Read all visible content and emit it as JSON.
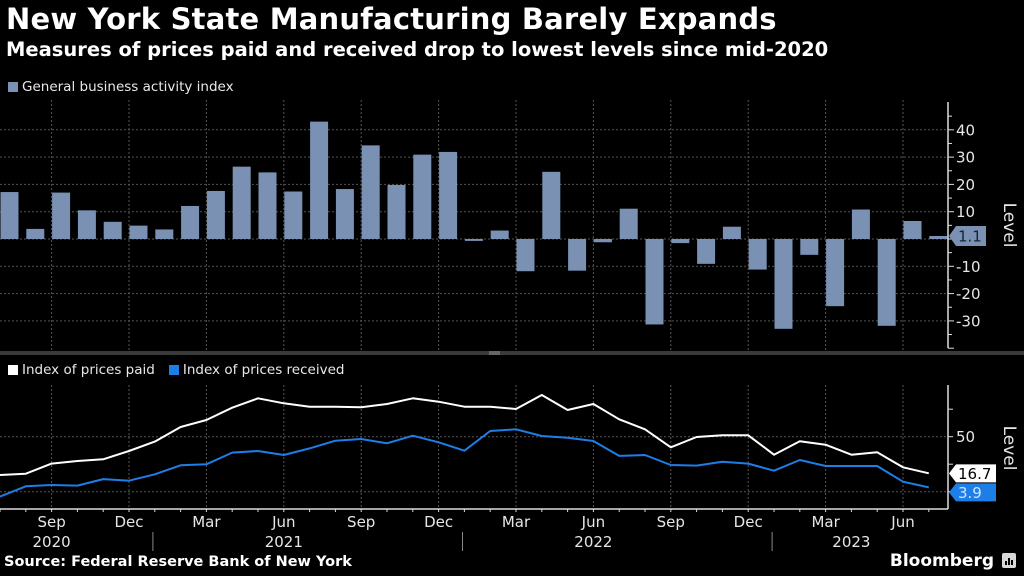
{
  "header": {
    "title": "New York State Manufacturing Barely Expands",
    "subtitle": "Measures of prices paid and received drop to lowest levels since mid-2020"
  },
  "footer": {
    "source": "Source: Federal Reserve Bank of New York",
    "brand": "Bloomberg"
  },
  "chart_data": [
    {
      "type": "bar",
      "title": "General business activity index",
      "legend": [
        {
          "name": "General business activity index",
          "color": "#7a91b3"
        }
      ],
      "legend_position": "top-left",
      "ylabel": "Level",
      "ylim": [
        -40,
        50
      ],
      "yticks": [
        40,
        30,
        20,
        10,
        -10,
        -20,
        -30
      ],
      "grid": true,
      "last_value_label": "1.1",
      "x": [
        "Jul 2020",
        "Aug 2020",
        "Sep 2020",
        "Oct 2020",
        "Nov 2020",
        "Dec 2020",
        "Jan 2021",
        "Feb 2021",
        "Mar 2021",
        "Apr 2021",
        "May 2021",
        "Jun 2021",
        "Jul 2021",
        "Aug 2021",
        "Sep 2021",
        "Oct 2021",
        "Nov 2021",
        "Dec 2021",
        "Jan 2022",
        "Feb 2022",
        "Mar 2022",
        "Apr 2022",
        "May 2022",
        "Jun 2022",
        "Jul 2022",
        "Aug 2022",
        "Sep 2022",
        "Oct 2022",
        "Nov 2022",
        "Dec 2022",
        "Jan 2023",
        "Feb 2023",
        "Mar 2023",
        "Apr 2023",
        "May 2023",
        "Jun 2023",
        "Jul 2023"
      ],
      "values": [
        17.2,
        3.7,
        17.0,
        10.5,
        6.3,
        4.9,
        3.5,
        12.1,
        17.6,
        26.5,
        24.4,
        17.4,
        43.0,
        18.3,
        34.3,
        19.8,
        30.9,
        31.9,
        -0.7,
        3.1,
        -11.8,
        24.6,
        -11.6,
        -1.2,
        11.1,
        -31.3,
        -1.5,
        -9.1,
        4.5,
        -11.2,
        -32.9,
        -5.8,
        -24.6,
        10.8,
        -31.8,
        6.6,
        1.1
      ],
      "color": "#7a91b3"
    },
    {
      "type": "line",
      "legend_position": "top-left",
      "ylabel": "Level",
      "ylim": [
        -8,
        100
      ],
      "yticks": [
        50
      ],
      "grid": true,
      "series": [
        {
          "name": "Index of prices paid",
          "color": "#ffffff",
          "last_value_label": "16.7",
          "values": [
            15.2,
            16.4,
            25.5,
            27.9,
            29.5,
            37.0,
            45.5,
            58.8,
            65.2,
            76.4,
            84.9,
            80.4,
            77.3,
            77.3,
            76.7,
            79.7,
            84.9,
            81.8,
            77.3,
            77.3,
            75.2,
            87.9,
            74.3,
            79.7,
            65.8,
            56.7,
            40.4,
            49.7,
            51.3,
            51.3,
            33.6,
            45.8,
            42.7,
            33.6,
            35.8,
            22.2,
            16.7
          ]
        },
        {
          "name": "Index of prices received",
          "color": "#1e7ee8",
          "last_value_label": "3.9",
          "values": [
            -4.5,
            4.9,
            6.1,
            5.5,
            11.5,
            10.0,
            15.8,
            24.0,
            24.9,
            35.5,
            37.0,
            33.4,
            39.4,
            46.4,
            47.9,
            44.0,
            50.9,
            44.9,
            37.3,
            55.2,
            56.7,
            50.6,
            49.1,
            46.1,
            32.5,
            33.4,
            24.3,
            23.7,
            27.3,
            25.5,
            19.1,
            28.8,
            23.4,
            23.4,
            23.4,
            9.1,
            3.9
          ]
        }
      ],
      "x_ticks": [
        {
          "label": "Sep",
          "month_index": 2
        },
        {
          "label": "Dec",
          "month_index": 5
        },
        {
          "label": "Mar",
          "month_index": 8
        },
        {
          "label": "Jun",
          "month_index": 11
        },
        {
          "label": "Sep",
          "month_index": 14
        },
        {
          "label": "Dec",
          "month_index": 17
        },
        {
          "label": "Mar",
          "month_index": 20
        },
        {
          "label": "Jun",
          "month_index": 23
        },
        {
          "label": "Sep",
          "month_index": 26
        },
        {
          "label": "Dec",
          "month_index": 29
        },
        {
          "label": "Mar",
          "month_index": 32
        },
        {
          "label": "Jun",
          "month_index": 35
        }
      ],
      "x_years": [
        {
          "label": "2020",
          "month_index": 2
        },
        {
          "label": "2021",
          "month_index": 11
        },
        {
          "label": "2022",
          "month_index": 23
        },
        {
          "label": "2023",
          "month_index": 33
        }
      ],
      "year_dividers": [
        5.5,
        17.5,
        29.5
      ]
    }
  ]
}
